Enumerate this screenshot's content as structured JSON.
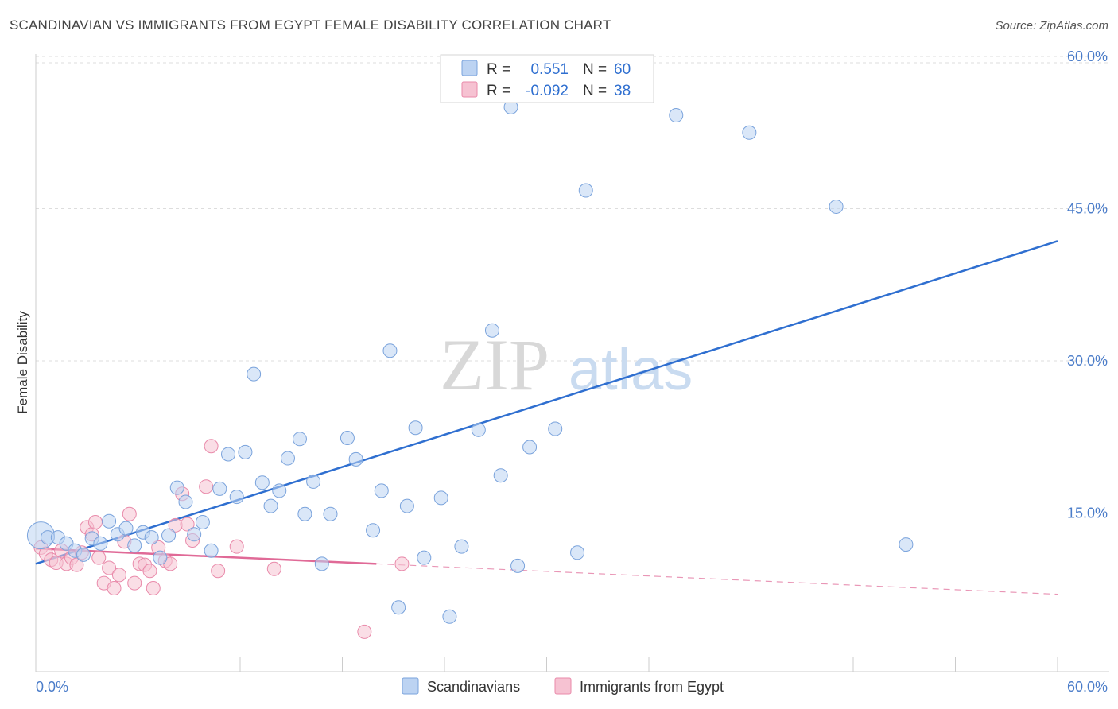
{
  "header": {
    "title": "SCANDINAVIAN VS IMMIGRANTS FROM EGYPT FEMALE DISABILITY CORRELATION CHART",
    "source": "Source: ZipAtlas.com"
  },
  "watermark": {
    "zip": "ZIP",
    "atlas": "atlas"
  },
  "colors": {
    "blue_fill": "#bcd3f2",
    "blue_stroke": "#7aa3dc",
    "blue_line": "#2f6fd0",
    "pink_fill": "#f6c2d2",
    "pink_stroke": "#e98aaa",
    "pink_line": "#e06a97",
    "grid": "#dddddd",
    "tick_text": "#4a7cc9"
  },
  "legend": {
    "rows": [
      {
        "r_label": "R =",
        "r_value": "0.551",
        "n_label": "N =",
        "n_value": "60"
      },
      {
        "r_label": "R =",
        "r_value": "-0.092",
        "n_label": "N =",
        "n_value": "38"
      }
    ]
  },
  "chart_data": {
    "type": "scatter",
    "title": "SCANDINAVIAN VS IMMIGRANTS FROM EGYPT FEMALE DISABILITY CORRELATION CHART",
    "xlabel": "",
    "ylabel": "Female Disability",
    "xlim": [
      0,
      60
    ],
    "ylim": [
      0,
      60
    ],
    "x_tick_labels": [
      "0.0%",
      "60.0%"
    ],
    "y_ticks": [
      15,
      30,
      45,
      60
    ],
    "y_tick_labels": [
      "15.0%",
      "30.0%",
      "45.0%",
      "60.0%"
    ],
    "grid": true,
    "legend_position": "top-center",
    "series": [
      {
        "name": "Scandinavians",
        "r": 0.551,
        "n": 60,
        "trend": {
          "x0": 0,
          "y0": 10.0,
          "x1": 60,
          "y1": 41.8
        },
        "points": [
          [
            0.3,
            12.8
          ],
          [
            0.7,
            12.6
          ],
          [
            1.3,
            12.6
          ],
          [
            1.8,
            12.0
          ],
          [
            2.3,
            11.3
          ],
          [
            2.8,
            10.9
          ],
          [
            3.3,
            12.5
          ],
          [
            3.8,
            12.0
          ],
          [
            4.3,
            14.2
          ],
          [
            4.8,
            12.9
          ],
          [
            5.3,
            13.5
          ],
          [
            5.8,
            11.8
          ],
          [
            6.3,
            13.1
          ],
          [
            6.8,
            12.6
          ],
          [
            7.3,
            10.6
          ],
          [
            7.8,
            12.8
          ],
          [
            8.3,
            17.5
          ],
          [
            8.8,
            16.1
          ],
          [
            9.3,
            12.9
          ],
          [
            9.8,
            14.1
          ],
          [
            10.3,
            11.3
          ],
          [
            10.8,
            17.4
          ],
          [
            11.3,
            20.8
          ],
          [
            11.8,
            16.6
          ],
          [
            12.3,
            21.0
          ],
          [
            12.8,
            28.7
          ],
          [
            13.3,
            18.0
          ],
          [
            13.8,
            15.7
          ],
          [
            14.3,
            17.2
          ],
          [
            14.8,
            20.4
          ],
          [
            15.5,
            22.3
          ],
          [
            15.8,
            14.9
          ],
          [
            16.3,
            18.1
          ],
          [
            16.8,
            10.0
          ],
          [
            17.3,
            14.9
          ],
          [
            18.3,
            22.4
          ],
          [
            18.8,
            20.3
          ],
          [
            19.8,
            13.3
          ],
          [
            20.3,
            17.2
          ],
          [
            20.8,
            31.0
          ],
          [
            21.3,
            5.7
          ],
          [
            21.8,
            15.7
          ],
          [
            22.3,
            23.4
          ],
          [
            22.8,
            10.6
          ],
          [
            23.8,
            16.5
          ],
          [
            24.3,
            4.8
          ],
          [
            25.0,
            11.7
          ],
          [
            26.0,
            23.2
          ],
          [
            26.8,
            33.0
          ],
          [
            27.3,
            18.7
          ],
          [
            27.9,
            55.0
          ],
          [
            28.3,
            9.8
          ],
          [
            29.0,
            21.5
          ],
          [
            30.5,
            23.3
          ],
          [
            31.8,
            11.1
          ],
          [
            32.3,
            46.8
          ],
          [
            37.6,
            54.2
          ],
          [
            41.9,
            52.5
          ],
          [
            47.0,
            45.2
          ],
          [
            51.1,
            11.9
          ]
        ]
      },
      {
        "name": "Immigrants from Egypt",
        "r": -0.092,
        "n": 38,
        "trend": {
          "x0": 0,
          "y0": 11.5,
          "x1": 20,
          "y1": 10.0,
          "dashed_to_x": 60,
          "dashed_to_y": 7.0
        },
        "points": [
          [
            0.3,
            11.6
          ],
          [
            0.6,
            11.0
          ],
          [
            0.9,
            10.4
          ],
          [
            1.2,
            10.1
          ],
          [
            1.5,
            11.3
          ],
          [
            1.8,
            10.0
          ],
          [
            2.1,
            10.6
          ],
          [
            2.4,
            9.9
          ],
          [
            2.7,
            11.1
          ],
          [
            3.0,
            13.6
          ],
          [
            3.3,
            12.9
          ],
          [
            3.5,
            14.1
          ],
          [
            3.7,
            10.6
          ],
          [
            4.0,
            8.1
          ],
          [
            4.3,
            9.6
          ],
          [
            4.6,
            7.6
          ],
          [
            4.9,
            8.9
          ],
          [
            5.2,
            12.2
          ],
          [
            5.5,
            14.9
          ],
          [
            5.8,
            8.1
          ],
          [
            6.1,
            10.0
          ],
          [
            6.4,
            9.9
          ],
          [
            6.7,
            9.3
          ],
          [
            6.9,
            7.6
          ],
          [
            7.2,
            11.6
          ],
          [
            7.6,
            10.3
          ],
          [
            7.9,
            10.0
          ],
          [
            8.2,
            13.8
          ],
          [
            8.6,
            16.9
          ],
          [
            8.9,
            13.9
          ],
          [
            9.2,
            12.3
          ],
          [
            10.0,
            17.6
          ],
          [
            10.3,
            21.6
          ],
          [
            10.7,
            9.3
          ],
          [
            11.8,
            11.7
          ],
          [
            14.0,
            9.5
          ],
          [
            19.3,
            3.3
          ],
          [
            21.5,
            10.0
          ]
        ]
      }
    ]
  },
  "bottom_legend": {
    "items": [
      {
        "label": "Scandinavians"
      },
      {
        "label": "Immigrants from Egypt"
      }
    ]
  }
}
